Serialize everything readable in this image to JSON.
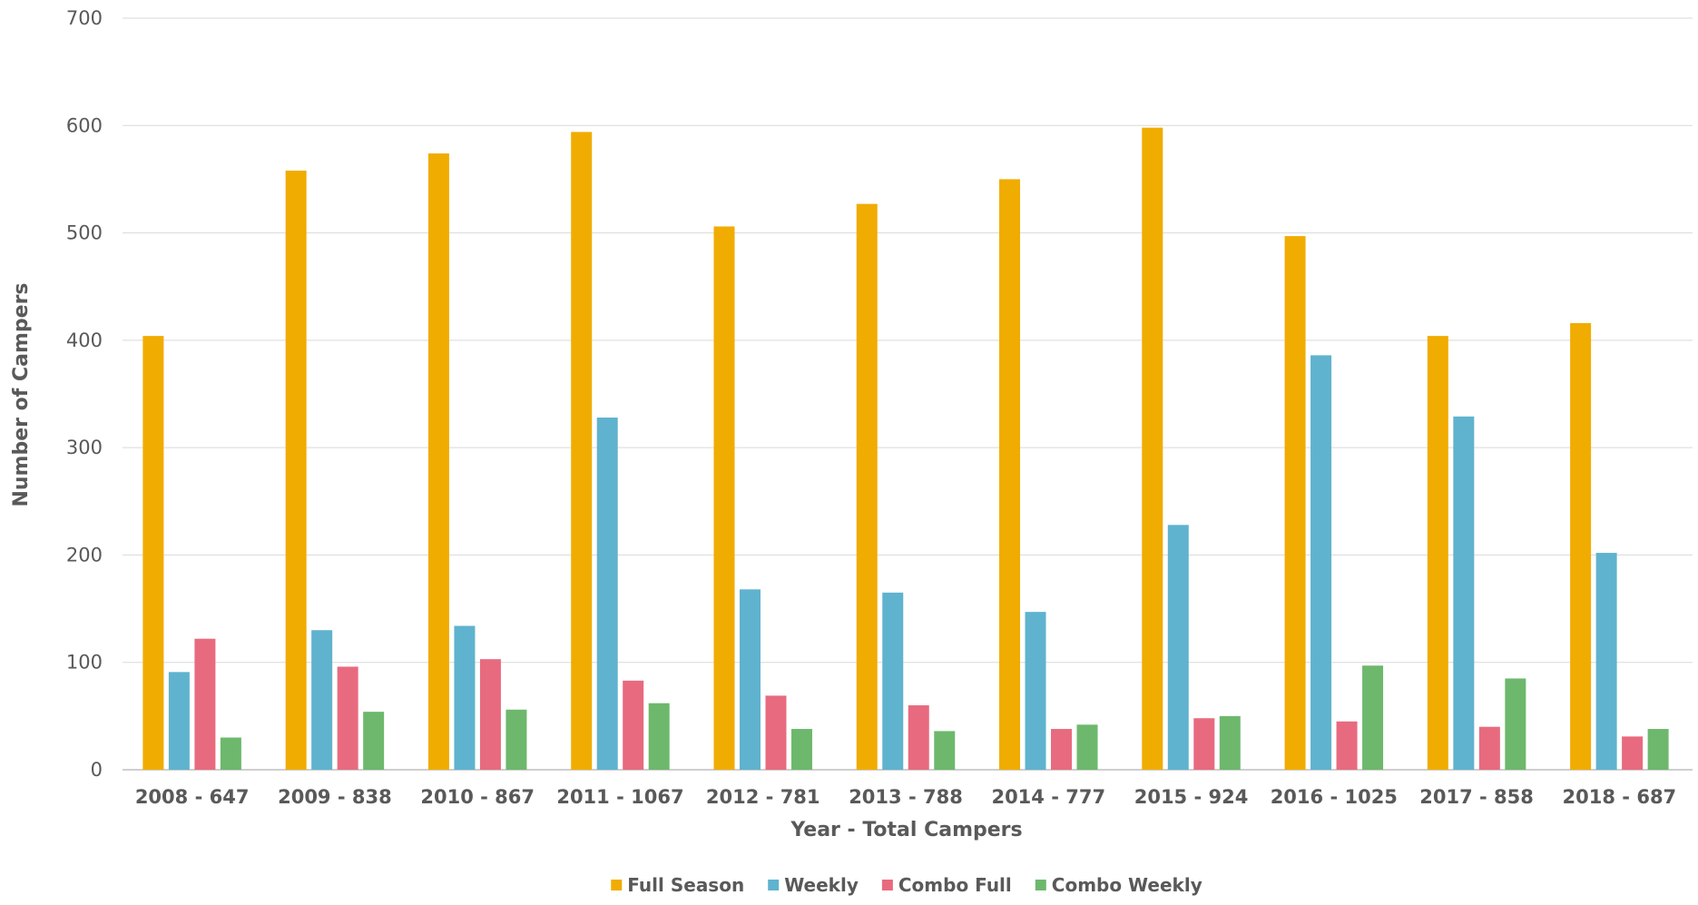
{
  "chart_data": {
    "type": "bar",
    "title": "",
    "xlabel": "Year - Total Campers",
    "ylabel": "Number of Campers",
    "ylim": [
      0,
      700
    ],
    "yticks": [
      0,
      100,
      200,
      300,
      400,
      500,
      600,
      700
    ],
    "grid": true,
    "legend_position": "bottom",
    "categories": [
      "2008 - 647",
      "2009 - 838",
      "2010 - 867",
      "2011 - 1067",
      "2012 - 781",
      "2013 - 788",
      "2014 - 777",
      "2015 - 924",
      "2016 - 1025",
      "2017 - 858",
      "2018 - 687"
    ],
    "series": [
      {
        "name": "Full Season",
        "color": "#F0AC00",
        "values": [
          404,
          558,
          574,
          594,
          506,
          527,
          550,
          598,
          497,
          404,
          416
        ]
      },
      {
        "name": "Weekly",
        "color": "#5FB3CE",
        "values": [
          91,
          130,
          134,
          328,
          168,
          165,
          147,
          228,
          386,
          329,
          202
        ]
      },
      {
        "name": "Combo Full",
        "color": "#E86A7F",
        "values": [
          122,
          96,
          103,
          83,
          69,
          60,
          38,
          48,
          45,
          40,
          31
        ]
      },
      {
        "name": "Combo Weekly",
        "color": "#6DB86D",
        "values": [
          30,
          54,
          56,
          62,
          38,
          36,
          42,
          50,
          97,
          85,
          38
        ]
      }
    ]
  }
}
